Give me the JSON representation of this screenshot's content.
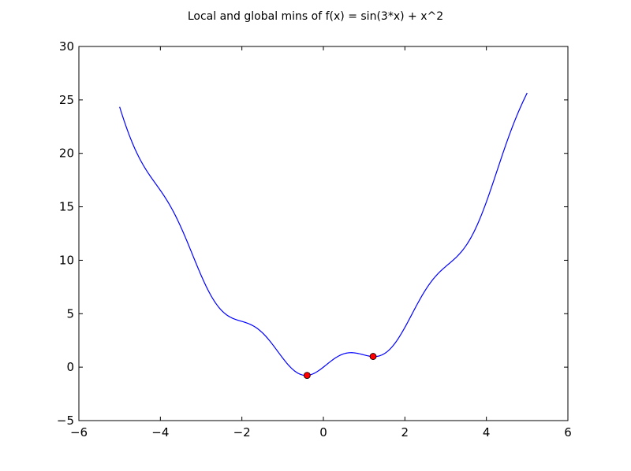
{
  "chart_data": {
    "type": "line",
    "title": "Local and global mins of f(x) = sin(3*x) + x^2",
    "xlabel": "",
    "ylabel": "",
    "xlim": [
      -6,
      6
    ],
    "ylim": [
      -5,
      30
    ],
    "xticks": [
      -6,
      -4,
      -2,
      0,
      2,
      4,
      6
    ],
    "yticks": [
      -5,
      0,
      5,
      10,
      15,
      20,
      25,
      30
    ],
    "grid": false,
    "series": [
      {
        "color": "#0000ff",
        "function": "sin(3*x) + x^2",
        "x_range": [
          -5,
          5
        ],
        "sample_count": 401
      }
    ],
    "markers": [
      {
        "x": -0.4,
        "y": -0.77,
        "color": "#ff0000"
      },
      {
        "x": 1.22,
        "y": 1.0,
        "color": "#ff0000"
      }
    ]
  }
}
